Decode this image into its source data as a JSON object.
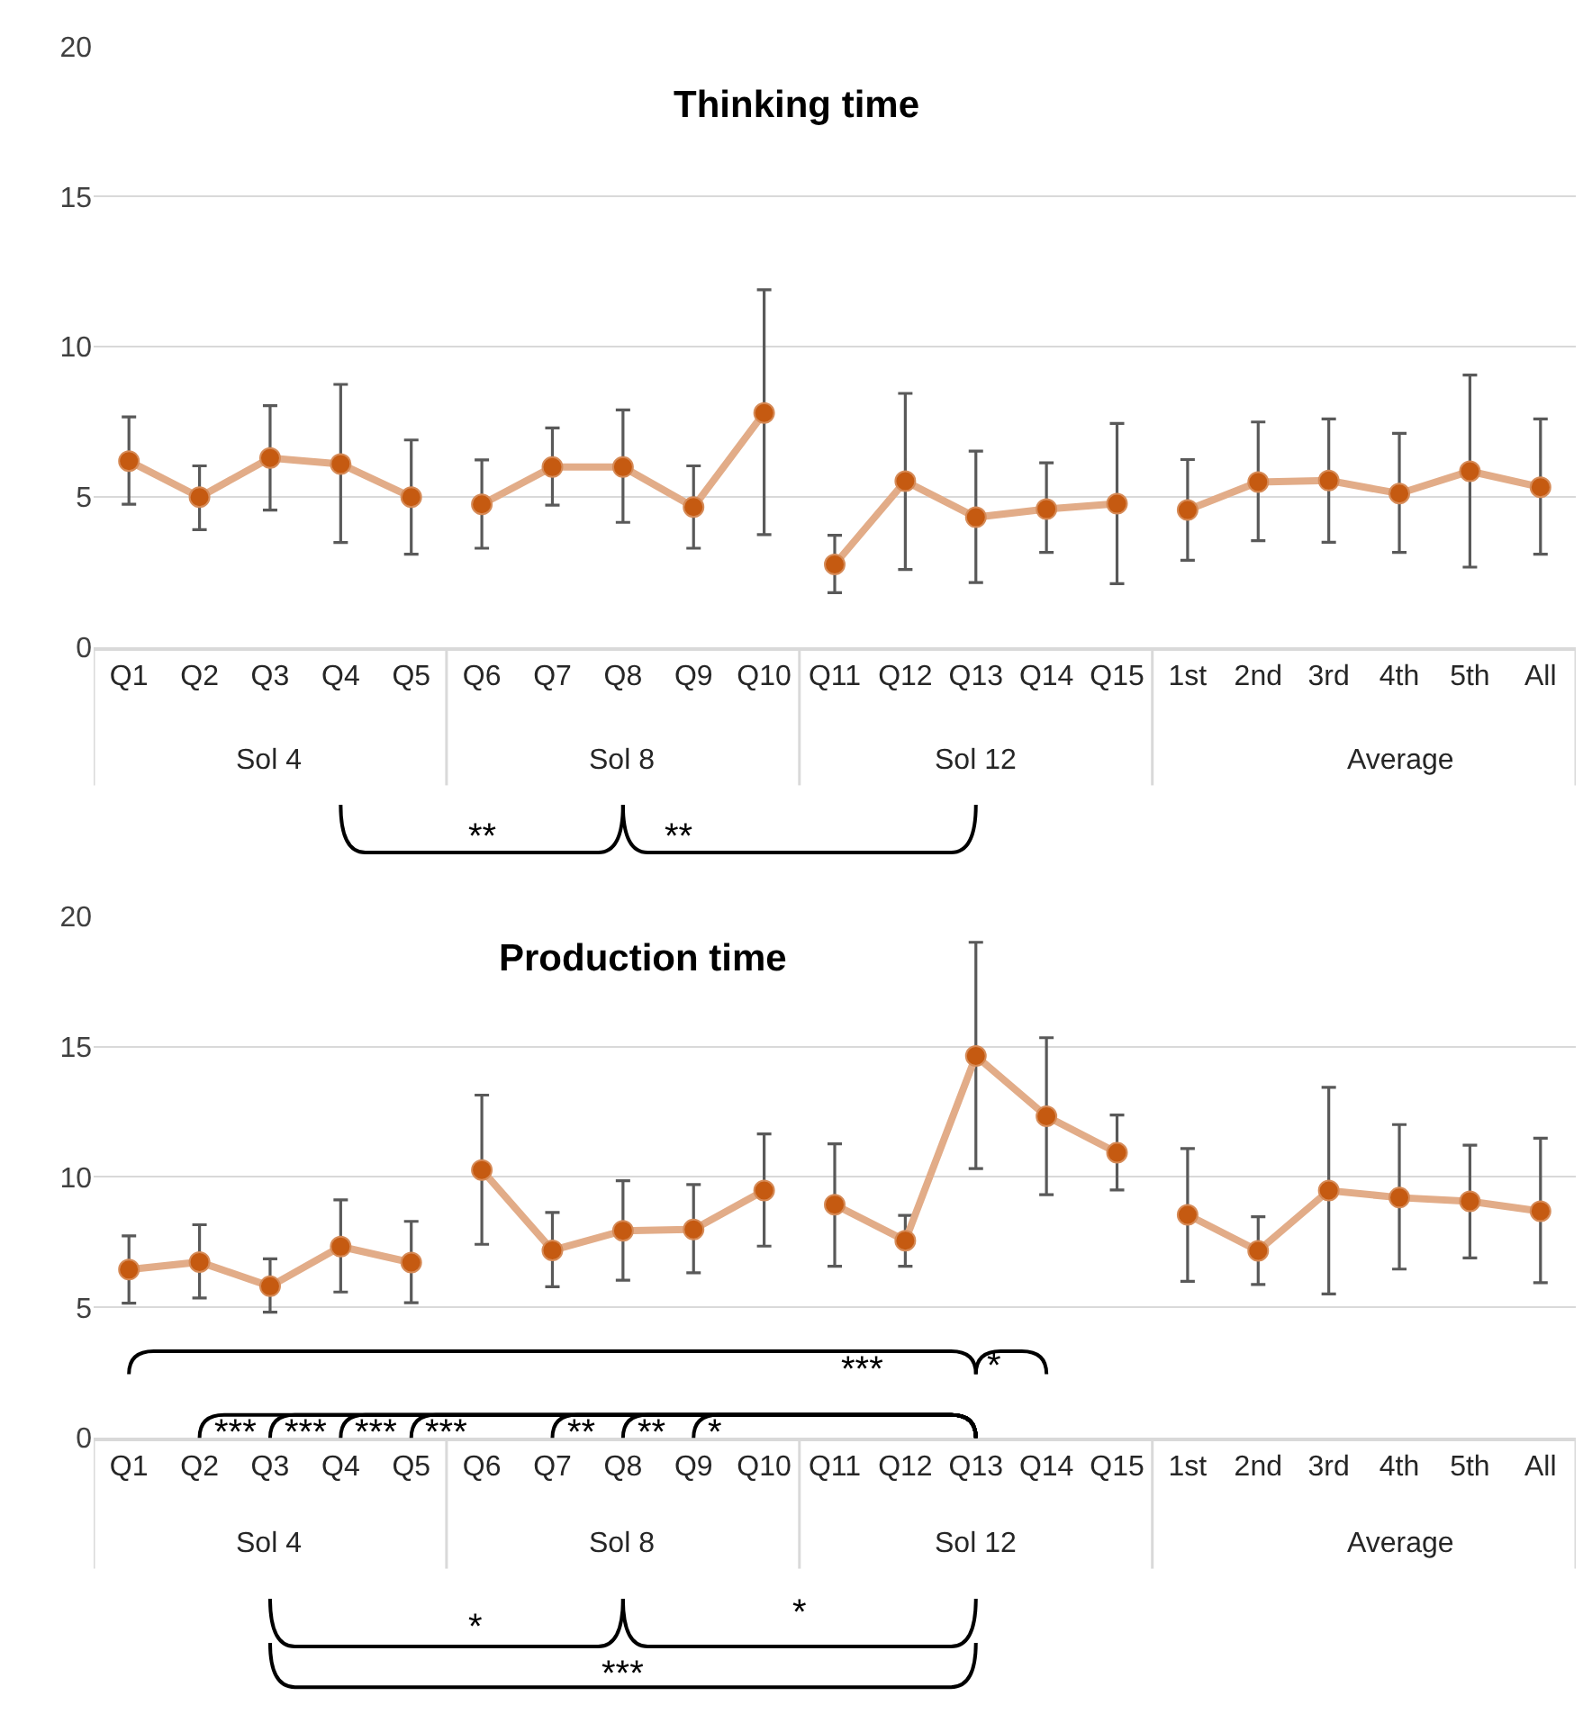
{
  "chart_data": [
    {
      "type": "line",
      "title": "Thinking time",
      "categories": [
        "Q1",
        "Q2",
        "Q3",
        "Q4",
        "Q5",
        "Q6",
        "Q7",
        "Q8",
        "Q9",
        "Q10",
        "Q11",
        "Q12",
        "Q13",
        "Q14",
        "Q15",
        "1st",
        "2nd",
        "3rd",
        "4th",
        "5th",
        "All"
      ],
      "series": [
        {
          "color": "#c55a11",
          "values": [
            6.2,
            5.0,
            6.3,
            6.1,
            5.0,
            null,
            null,
            null,
            null,
            null,
            null,
            null,
            null,
            null,
            null,
            null,
            null,
            null,
            null,
            null,
            null
          ],
          "errors": [
            [
              4.76,
              7.67
            ],
            [
              3.92,
              6.04
            ],
            [
              4.57,
              8.04
            ],
            [
              3.49,
              8.75
            ],
            [
              3.1,
              6.9
            ],
            null,
            null,
            null,
            null,
            null,
            null,
            null,
            null,
            null,
            null,
            null,
            null,
            null,
            null,
            null,
            null
          ]
        },
        {
          "color": "#c55a11",
          "values": [
            null,
            null,
            null,
            null,
            null,
            4.76,
            6.0,
            6.0,
            4.67,
            7.8,
            null,
            null,
            null,
            null,
            null,
            null,
            null,
            null,
            null,
            null,
            null
          ],
          "errors": [
            null,
            null,
            null,
            null,
            null,
            [
              3.3,
              6.24
            ],
            [
              4.73,
              7.3
            ],
            [
              4.16,
              7.9
            ],
            [
              3.3,
              6.04
            ],
            [
              3.75,
              11.9
            ],
            null,
            null,
            null,
            null,
            null,
            null,
            null,
            null,
            null,
            null,
            null
          ]
        },
        {
          "color": "#c55a11",
          "values": [
            null,
            null,
            null,
            null,
            null,
            null,
            null,
            null,
            null,
            null,
            2.76,
            5.53,
            4.33,
            4.6,
            4.78,
            null,
            null,
            null,
            null,
            null,
            null
          ],
          "errors": [
            null,
            null,
            null,
            null,
            null,
            null,
            null,
            null,
            null,
            null,
            [
              1.82,
              3.73
            ],
            [
              2.59,
              8.45
            ],
            [
              2.16,
              6.53
            ],
            [
              3.16,
              6.14
            ],
            [
              2.12,
              7.45
            ],
            null,
            null,
            null,
            null,
            null,
            null
          ]
        },
        {
          "color": "#c55a11",
          "values": [
            null,
            null,
            null,
            null,
            null,
            null,
            null,
            null,
            null,
            null,
            null,
            null,
            null,
            null,
            null,
            4.57,
            5.5,
            5.55,
            5.12,
            5.86,
            5.33
          ],
          "errors": [
            null,
            null,
            null,
            null,
            null,
            null,
            null,
            null,
            null,
            null,
            null,
            null,
            null,
            null,
            null,
            [
              2.9,
              6.25
            ],
            [
              3.55,
              7.5
            ],
            [
              3.5,
              7.6
            ],
            [
              3.16,
              7.12
            ],
            [
              2.67,
              9.06
            ],
            [
              3.1,
              7.6
            ]
          ]
        }
      ],
      "ylim": [
        0,
        20
      ],
      "yticks": [
        0,
        5,
        10,
        15,
        20
      ],
      "grid": "y",
      "marker": "circle",
      "line_style": "solid",
      "annotations": [
        "Sol 4",
        "Sol 8",
        "Sol 12",
        "Average",
        "**",
        "**"
      ]
    },
    {
      "type": "line",
      "title": "Production time",
      "categories": [
        "Q1",
        "Q2",
        "Q3",
        "Q4",
        "Q5",
        "Q6",
        "Q7",
        "Q8",
        "Q9",
        "Q10",
        "Q11",
        "Q12",
        "Q13",
        "Q14",
        "Q15",
        "1st",
        "2nd",
        "3rd",
        "4th",
        "5th",
        "All"
      ],
      "series": [
        {
          "color": "#c55a11",
          "values": [
            6.45,
            6.74,
            5.81,
            7.33,
            6.72,
            null,
            null,
            null,
            null,
            null,
            null,
            null,
            null,
            null,
            null,
            null,
            null,
            null,
            null,
            null,
            null
          ],
          "errors": [
            [
              5.16,
              7.74
            ],
            [
              5.36,
              8.17
            ],
            [
              4.82,
              6.86
            ],
            [
              5.59,
              9.12
            ],
            [
              5.18,
              8.3
            ],
            null,
            null,
            null,
            null,
            null,
            null,
            null,
            null,
            null,
            null,
            null,
            null,
            null,
            null,
            null,
            null
          ]
        },
        {
          "color": "#c55a11",
          "values": [
            null,
            null,
            null,
            null,
            null,
            10.27,
            7.19,
            7.94,
            7.99,
            9.48,
            null,
            null,
            null,
            null,
            null,
            null,
            null,
            null,
            null,
            null,
            null
          ],
          "errors": [
            null,
            null,
            null,
            null,
            null,
            [
              7.42,
              13.14
            ],
            [
              5.79,
              8.64
            ],
            [
              6.04,
              9.86
            ],
            [
              6.33,
              9.71
            ],
            [
              7.35,
              11.65
            ],
            null,
            null,
            null,
            null,
            null,
            null,
            null,
            null,
            null,
            null,
            null
          ]
        },
        {
          "color": "#c55a11",
          "values": [
            null,
            null,
            null,
            null,
            null,
            null,
            null,
            null,
            null,
            null,
            8.94,
            7.56,
            14.64,
            12.33,
            10.93,
            null,
            null,
            null,
            null,
            null,
            null
          ],
          "errors": [
            null,
            null,
            null,
            null,
            null,
            null,
            null,
            null,
            null,
            null,
            [
              6.58,
              11.27
            ],
            [
              6.58,
              8.53
            ],
            [
              10.32,
              19.0
            ],
            [
              9.32,
              15.34
            ],
            [
              9.5,
              12.38
            ],
            null,
            null,
            null,
            null,
            null,
            null
          ]
        },
        {
          "color": "#c55a11",
          "values": [
            null,
            null,
            null,
            null,
            null,
            null,
            null,
            null,
            null,
            null,
            null,
            null,
            null,
            null,
            null,
            8.55,
            7.17,
            9.48,
            9.21,
            9.07,
            8.69
          ],
          "errors": [
            null,
            null,
            null,
            null,
            null,
            null,
            null,
            null,
            null,
            null,
            null,
            null,
            null,
            null,
            null,
            [
              6.0,
              11.09
            ],
            [
              5.88,
              8.48
            ],
            [
              5.52,
              13.44
            ],
            [
              6.47,
              12.01
            ],
            [
              6.9,
              11.22
            ],
            [
              5.95,
              11.49
            ]
          ]
        }
      ],
      "ylim": [
        0,
        20
      ],
      "yticks": [
        0,
        5,
        10,
        15,
        20
      ],
      "grid": "y",
      "marker": "circle",
      "line_style": "solid",
      "annotations": [
        "Sol 4",
        "Sol 8",
        "Sol 12",
        "Average",
        "***",
        "*",
        "***",
        "***",
        "***",
        "***",
        "**",
        "**",
        "*",
        "*",
        "*",
        "***"
      ]
    }
  ]
}
